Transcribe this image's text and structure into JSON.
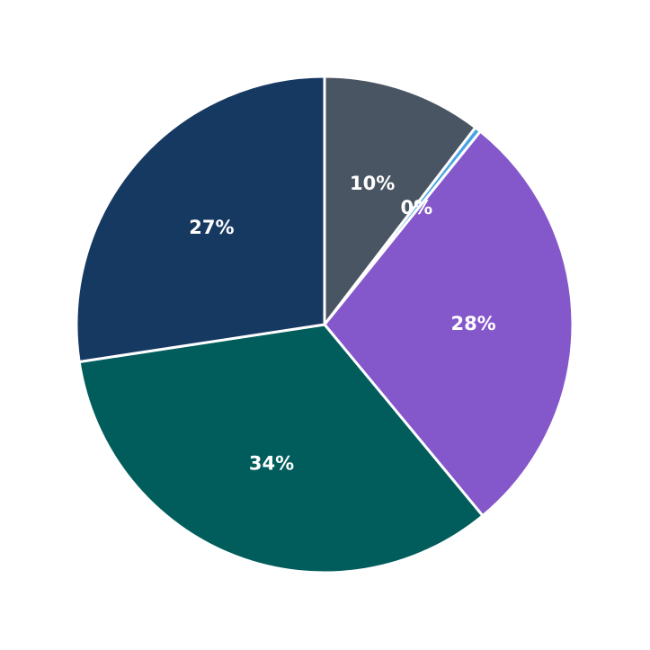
{
  "chart_data": {
    "type": "pie",
    "title": "",
    "start_angle_deg": 90,
    "direction": "clockwise",
    "center": [
      361,
      361
    ],
    "radius": 276,
    "slices": [
      {
        "label": "10%",
        "value": 10.4,
        "color": "#4a5563"
      },
      {
        "label": "0%",
        "value": 0.4,
        "color": "#4aa3df"
      },
      {
        "label": "28%",
        "value": 28.2,
        "color": "#8457cb"
      },
      {
        "label": "34%",
        "value": 33.6,
        "color": "#015d5c"
      },
      {
        "label": "27%",
        "value": 27.4,
        "color": "#163962"
      }
    ],
    "values": [
      10.4,
      0.4,
      28.2,
      33.6,
      27.4
    ],
    "labels": [
      "10%",
      "0%",
      "28%",
      "34%",
      "27%"
    ],
    "legend": null,
    "wedge_edge_color": "#ffffff",
    "label_color": "#ffffff"
  }
}
